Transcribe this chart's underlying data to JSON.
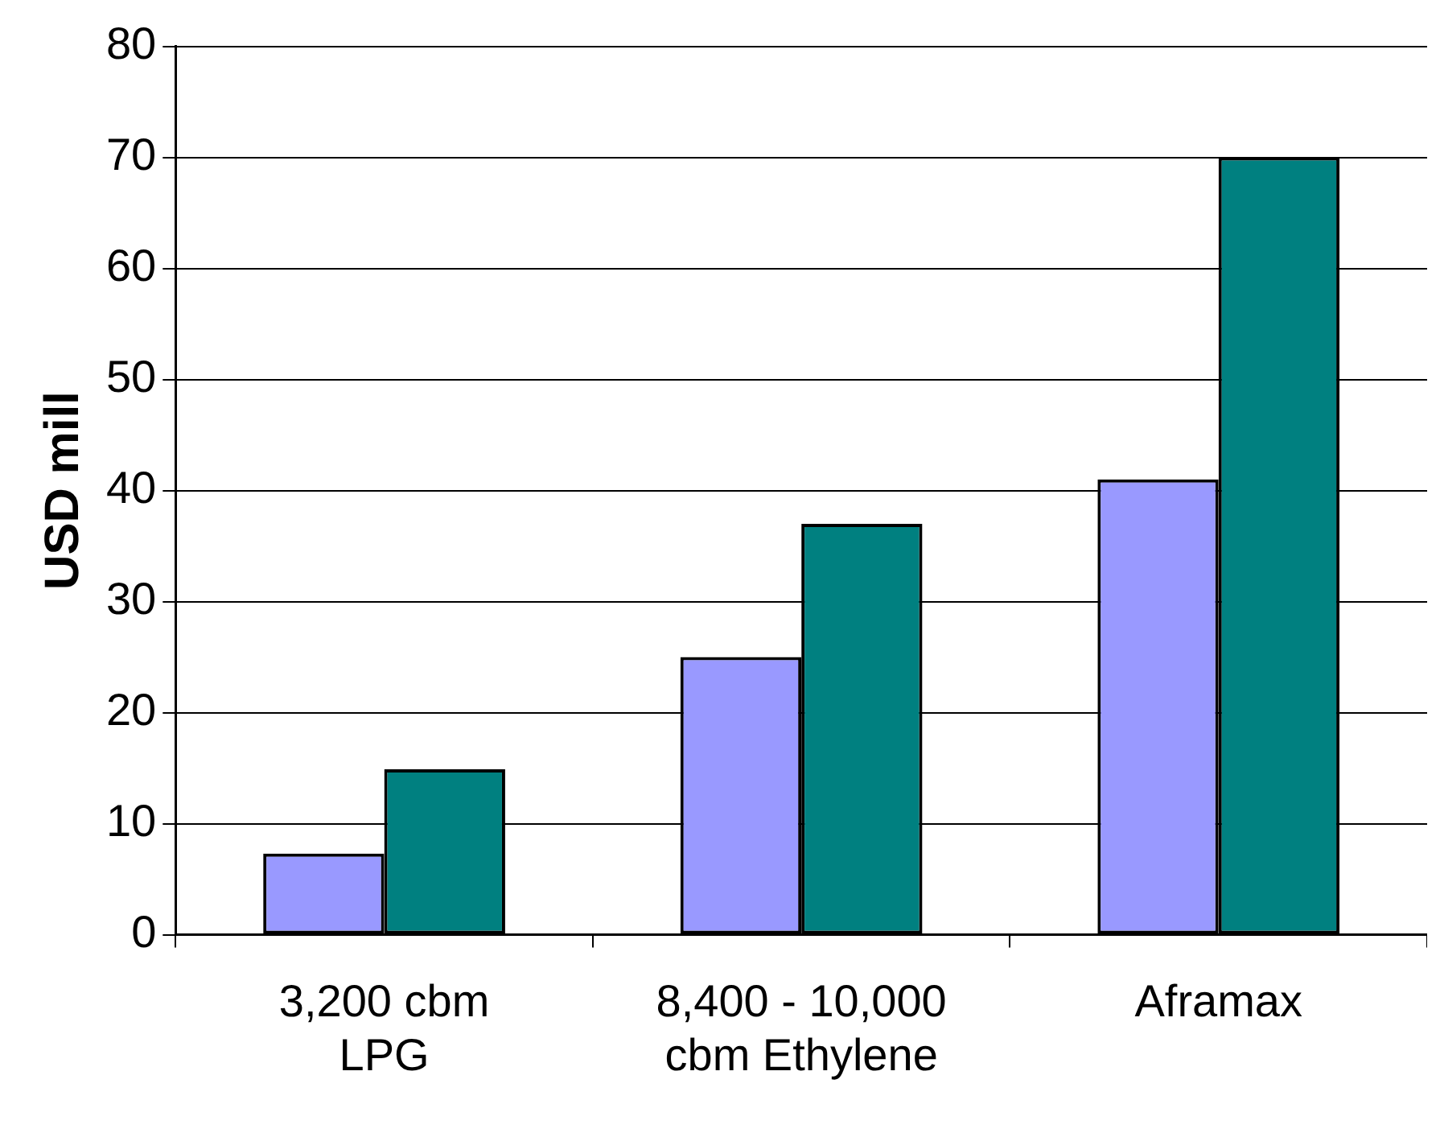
{
  "chart_data": {
    "type": "bar",
    "ylabel": "USD mill",
    "categories": [
      "3,200 cbm LPG",
      "8,400 - 10,000 cbm Ethylene",
      "Aframax"
    ],
    "series": [
      {
        "color": "#9999ff",
        "values": [
          7.3,
          25,
          41
        ]
      },
      {
        "color": "#008080",
        "values": [
          14.9,
          37,
          70
        ]
      }
    ],
    "ylim": [
      0,
      80
    ],
    "yticks": [
      0,
      10,
      20,
      30,
      40,
      50,
      60,
      70,
      80
    ],
    "grid": "y"
  }
}
